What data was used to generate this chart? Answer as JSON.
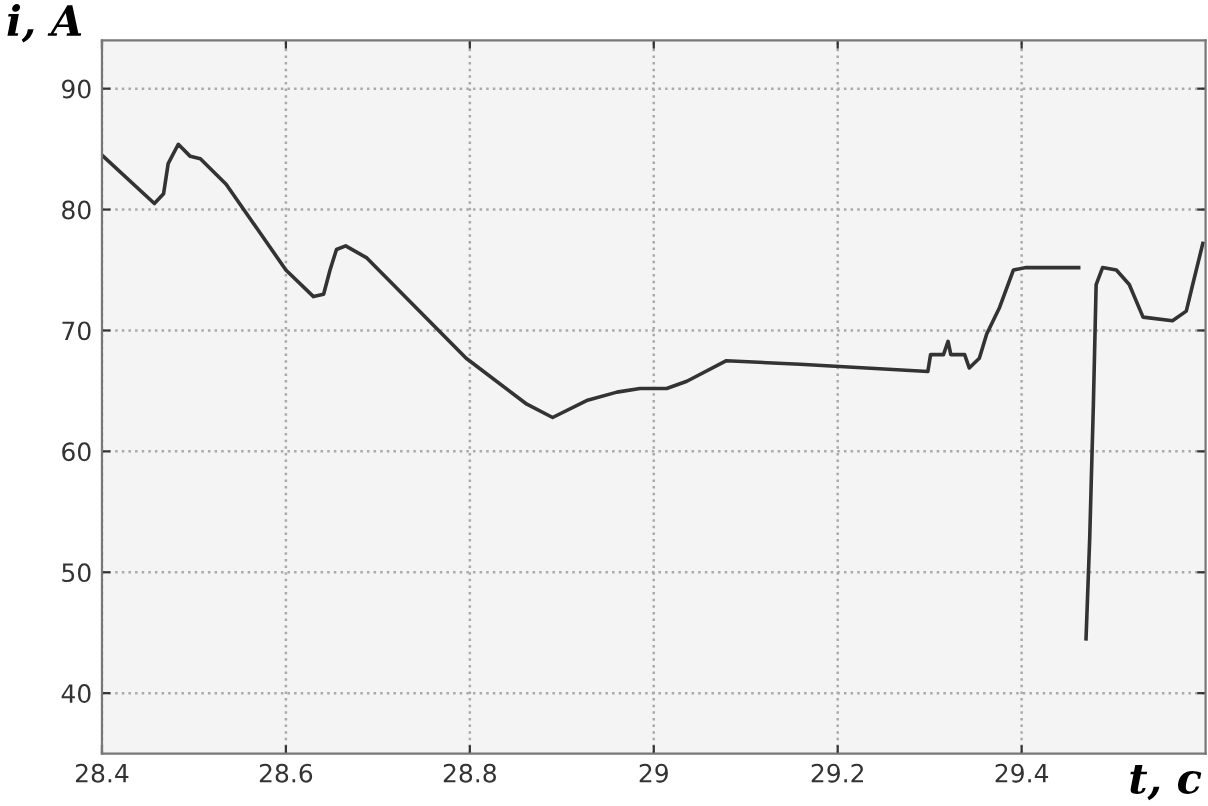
{
  "chart_data": {
    "type": "line",
    "xlabel": "t, c",
    "ylabel": "i, A",
    "x": [
      28.4,
      28.457,
      28.467,
      28.472,
      28.483,
      28.496,
      28.507,
      28.535,
      28.6,
      28.63,
      28.641,
      28.648,
      28.655,
      28.665,
      28.688,
      28.796,
      28.862,
      28.89,
      28.927,
      28.96,
      28.985,
      29.014,
      29.036,
      29.079,
      29.159,
      29.231,
      29.298,
      29.301,
      29.315,
      29.32,
      29.323,
      29.338,
      29.343,
      29.354,
      29.362,
      29.376,
      29.391,
      29.405,
      29.459,
      29.462,
      29.465,
      29.468,
      29.47,
      29.474,
      29.478,
      29.481,
      29.488,
      29.503,
      29.517,
      29.532,
      29.564,
      29.579,
      29.586,
      29.597
    ],
    "series": [
      {
        "color": "#333333",
        "values": [
          84.5,
          80.5,
          81.3,
          83.8,
          85.4,
          84.4,
          84.2,
          82.1,
          75,
          72.8,
          73,
          75,
          76.7,
          77,
          76,
          67.7,
          63.9,
          62.8,
          64.2,
          64.9,
          65.2,
          65.2,
          65.8,
          67.5,
          67.2,
          66.9,
          66.6,
          68.0,
          68.0,
          69.1,
          68,
          68.0,
          66.9,
          67.7,
          69.7,
          71.9,
          75,
          75.2,
          75.2,
          75.2,
          null,
          null,
          44.5,
          52.8,
          63.9,
          73.8,
          75.2,
          75,
          73.8,
          71.1,
          70.8,
          71.6,
          73.8,
          77.2
        ]
      }
    ],
    "xlim": [
      28.4,
      29.6
    ],
    "ylim": [
      35,
      94
    ],
    "xticks": [
      28.4,
      28.6,
      28.8,
      29,
      29.2,
      29.4
    ],
    "yticks": [
      40,
      50,
      60,
      70,
      80,
      90
    ],
    "grid": true,
    "marker": "none",
    "line_style": "solid"
  }
}
